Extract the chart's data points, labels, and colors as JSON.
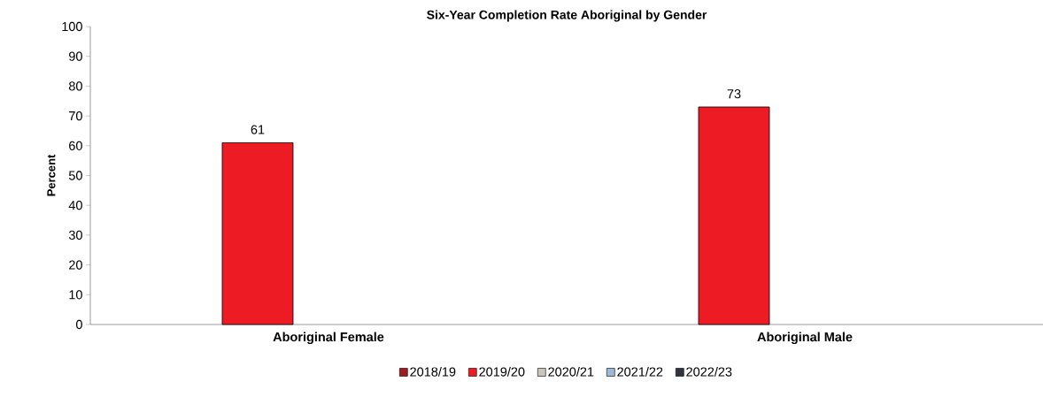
{
  "chart_data": {
    "type": "bar",
    "title": "Six-Year Completion Rate Aboriginal by Gender",
    "ylabel": "Percent",
    "categories": [
      "Aboriginal Female",
      "Aboriginal Male"
    ],
    "series": [
      {
        "name": "2018/19",
        "color": "#9e1b20",
        "values": [
          null,
          null
        ]
      },
      {
        "name": "2019/20",
        "color": "#ed1c24",
        "values": [
          61,
          73
        ]
      },
      {
        "name": "2020/21",
        "color": "#c8c6bc",
        "values": [
          null,
          null
        ]
      },
      {
        "name": "2021/22",
        "color": "#9cbad3",
        "values": [
          null,
          null
        ]
      },
      {
        "name": "2022/23",
        "color": "#30343f",
        "values": [
          null,
          null
        ]
      }
    ],
    "ylim": [
      0,
      100
    ],
    "yticks": [
      0,
      10,
      20,
      30,
      40,
      50,
      60,
      70,
      80,
      90,
      100
    ],
    "data_labels": true,
    "legend": "bottom"
  }
}
